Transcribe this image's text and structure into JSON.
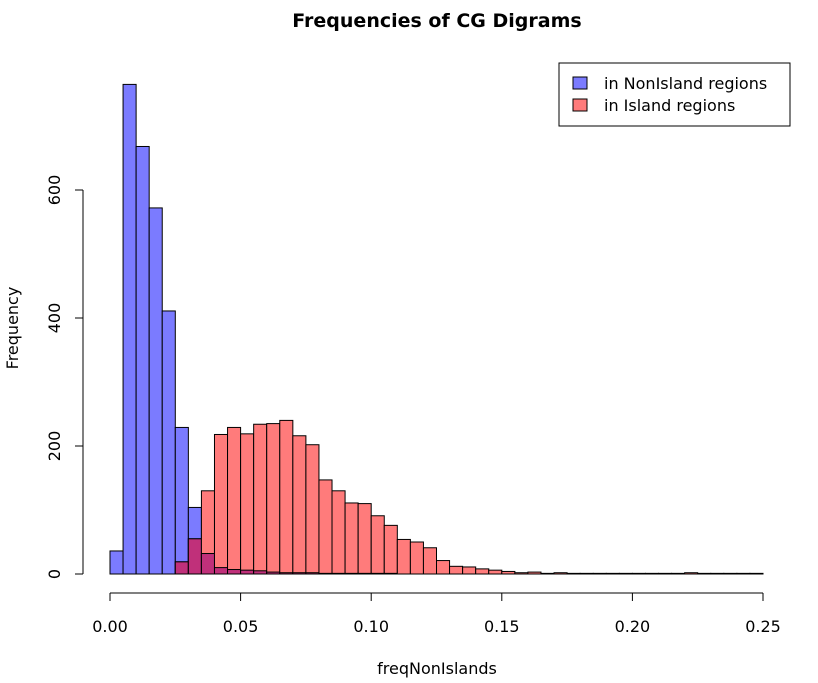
{
  "chart_data": {
    "type": "bar",
    "title": "Frequencies of CG Digrams",
    "xlabel": "freqNonIslands",
    "ylabel": "Frequency",
    "xlim": [
      0.0,
      0.25
    ],
    "ylim": [
      0,
      800
    ],
    "x_ticks": [
      0.0,
      0.05,
      0.1,
      0.15,
      0.2,
      0.25
    ],
    "x_tick_labels": [
      "0.00",
      "0.05",
      "0.10",
      "0.15",
      "0.20",
      "0.25"
    ],
    "y_ticks": [
      0,
      200,
      400,
      600
    ],
    "y_tick_labels": [
      "0",
      "200",
      "400",
      "600"
    ],
    "bin_width": 0.005,
    "grid": false,
    "legend_position": "top-right",
    "series": [
      {
        "name": "in NonIsland regions",
        "color": "#7b7bff",
        "bins": [
          [
            0.0,
            36
          ],
          [
            0.005,
            765
          ],
          [
            0.01,
            668
          ],
          [
            0.015,
            572
          ],
          [
            0.02,
            411
          ],
          [
            0.025,
            229
          ],
          [
            0.03,
            104
          ],
          [
            0.035,
            32
          ],
          [
            0.04,
            10
          ],
          [
            0.045,
            7
          ],
          [
            0.05,
            6
          ],
          [
            0.055,
            5
          ],
          [
            0.06,
            3
          ],
          [
            0.065,
            2
          ],
          [
            0.07,
            2
          ],
          [
            0.075,
            2
          ],
          [
            0.08,
            1
          ],
          [
            0.085,
            1
          ],
          [
            0.09,
            1
          ],
          [
            0.095,
            1
          ],
          [
            0.1,
            1
          ],
          [
            0.105,
            1
          ]
        ]
      },
      {
        "name": "in Island regions",
        "color": "#ff7b7b",
        "bins": [
          [
            0.025,
            19
          ],
          [
            0.03,
            55
          ],
          [
            0.035,
            130
          ],
          [
            0.04,
            218
          ],
          [
            0.045,
            229
          ],
          [
            0.05,
            219
          ],
          [
            0.055,
            234
          ],
          [
            0.06,
            235
          ],
          [
            0.065,
            240
          ],
          [
            0.07,
            216
          ],
          [
            0.075,
            202
          ],
          [
            0.08,
            147
          ],
          [
            0.085,
            130
          ],
          [
            0.09,
            111
          ],
          [
            0.095,
            110
          ],
          [
            0.1,
            91
          ],
          [
            0.105,
            76
          ],
          [
            0.11,
            54
          ],
          [
            0.115,
            50
          ],
          [
            0.12,
            41
          ],
          [
            0.125,
            21
          ],
          [
            0.13,
            12
          ],
          [
            0.135,
            11
          ],
          [
            0.14,
            8
          ],
          [
            0.145,
            6
          ],
          [
            0.15,
            4
          ],
          [
            0.155,
            2
          ],
          [
            0.16,
            3
          ],
          [
            0.165,
            1
          ],
          [
            0.17,
            2
          ],
          [
            0.175,
            1
          ],
          [
            0.18,
            1
          ],
          [
            0.185,
            1
          ],
          [
            0.19,
            1
          ],
          [
            0.195,
            1
          ],
          [
            0.2,
            1
          ],
          [
            0.205,
            1
          ],
          [
            0.21,
            1
          ],
          [
            0.215,
            1
          ],
          [
            0.22,
            2
          ],
          [
            0.225,
            1
          ],
          [
            0.23,
            1
          ],
          [
            0.235,
            1
          ],
          [
            0.24,
            1
          ],
          [
            0.245,
            1
          ]
        ]
      }
    ],
    "overlap_color": "#c0307a"
  }
}
